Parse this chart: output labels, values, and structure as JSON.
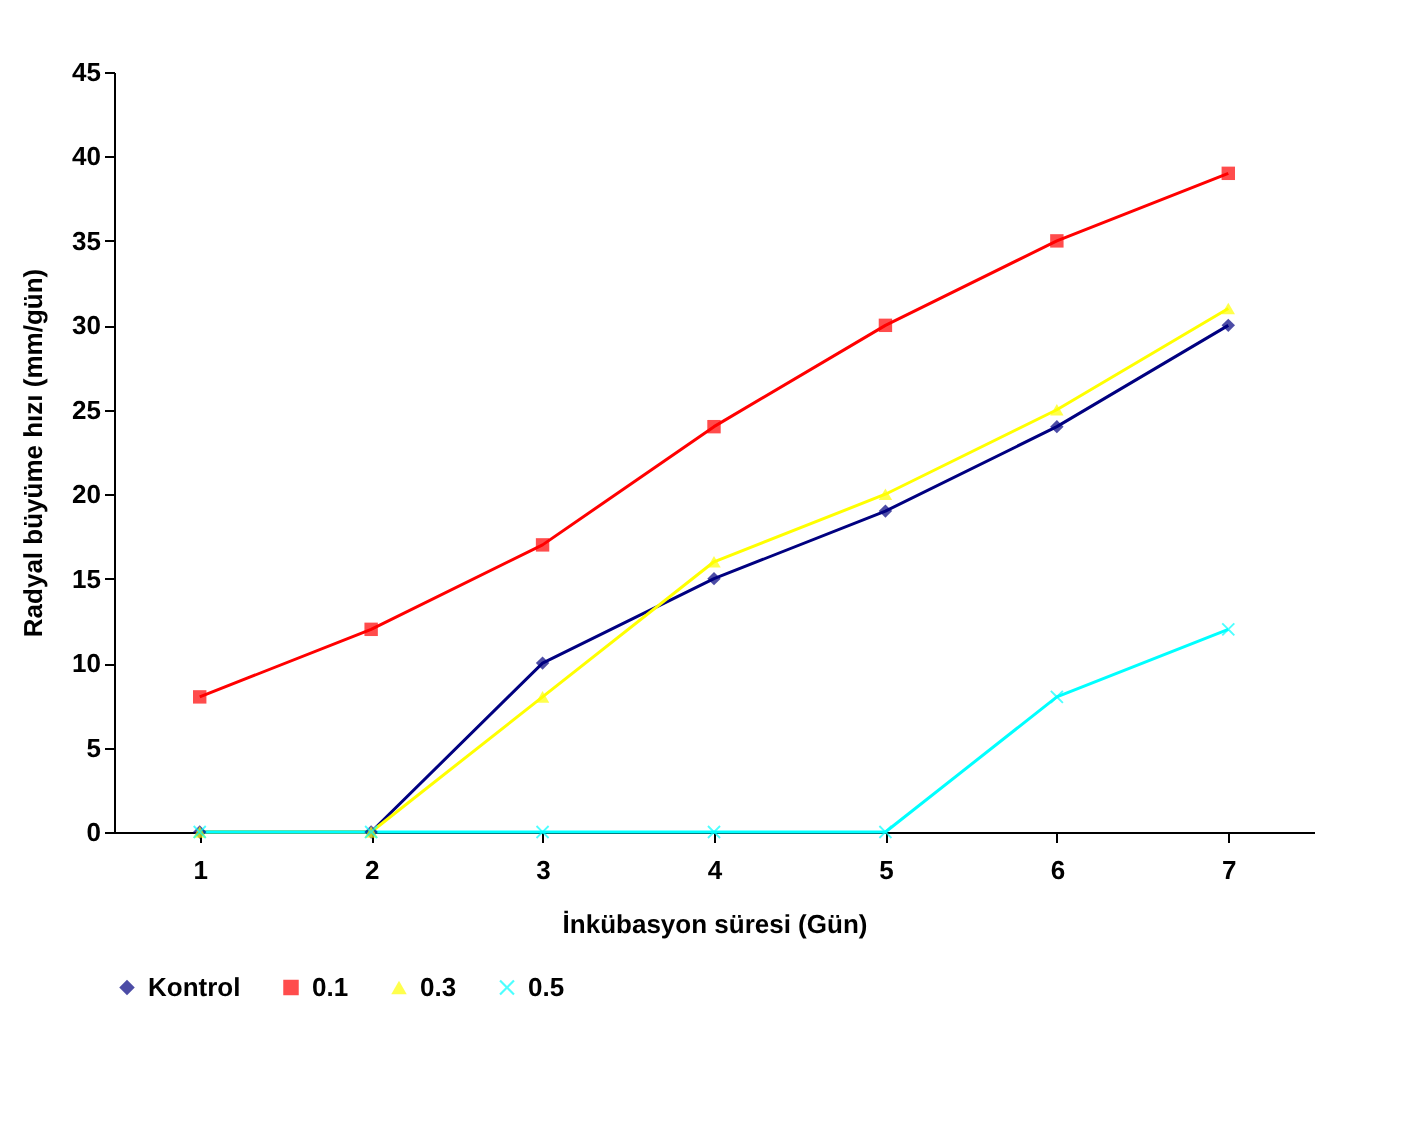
{
  "chart_data": {
    "type": "line",
    "xlabel": "İnkübasyon süresi (Gün)",
    "ylabel": "Radyal büyüme hızı (mm/gün)",
    "categories": [
      "1",
      "2",
      "3",
      "4",
      "5",
      "6",
      "7"
    ],
    "ylim": [
      0,
      45
    ],
    "yticks": [
      0,
      5,
      10,
      15,
      20,
      25,
      30,
      35,
      40,
      45
    ],
    "grid": false,
    "legend": "bottom",
    "line_style": "solid",
    "series": [
      {
        "name": "Kontrol",
        "color": "#000080",
        "marker": "diamond",
        "values": [
          0,
          0,
          10,
          15,
          19,
          24,
          30
        ]
      },
      {
        "name": "0.1",
        "color": "#ff0000",
        "marker": "square",
        "values": [
          8,
          12,
          17,
          24,
          30,
          35,
          39
        ]
      },
      {
        "name": "0.3",
        "color": "#ffff00",
        "marker": "triangle",
        "values": [
          0,
          0,
          8,
          16,
          20,
          25,
          31
        ]
      },
      {
        "name": "0.5",
        "color": "#00ffff",
        "marker": "cross",
        "values": [
          0,
          0,
          0,
          0,
          0,
          8,
          12
        ]
      }
    ]
  }
}
